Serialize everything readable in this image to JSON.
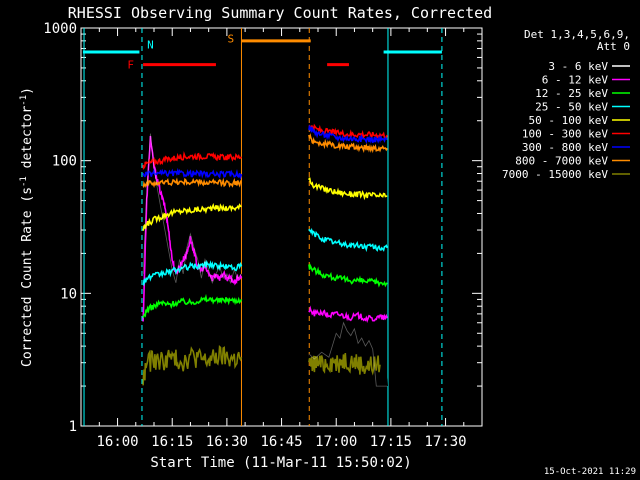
{
  "chart_data": {
    "type": "line",
    "title": "RHESSI Observing Summary Count Rates, Corrected",
    "xlabel": "Start Time (11-Mar-11 15:50:02)",
    "ylabel": "Corrected Count Rate (s⁻¹ detector⁻¹)",
    "ylabel_parts": {
      "main": "Corrected Count Rate (s",
      "sup1": "-1",
      "mid": " detector",
      "sup2": "-1",
      "end": ")"
    },
    "yscale": "log",
    "ylim": [
      1,
      1000
    ],
    "xlim_minutes": [
      -10.03,
      100.0
    ],
    "x_ticks": [
      {
        "label": "16:00",
        "min": 0
      },
      {
        "label": "16:15",
        "min": 15
      },
      {
        "label": "16:30",
        "min": 30
      },
      {
        "label": "16:45",
        "min": 45
      },
      {
        "label": "17:00",
        "min": 60
      },
      {
        "label": "17:15",
        "min": 75
      },
      {
        "label": "17:30",
        "min": 90
      }
    ],
    "y_ticks": [
      {
        "label": "1",
        "value": 1
      },
      {
        "label": "10",
        "value": 10
      },
      {
        "label": "100",
        "value": 100
      },
      {
        "label": "1000",
        "value": 1000
      }
    ],
    "legend": {
      "position": "right",
      "header": [
        "Det 1,3,4,5,6,9,",
        "Att 0"
      ],
      "entries": [
        {
          "label": "3 - 6 keV",
          "color": "#ffffff"
        },
        {
          "label": "6 - 12 keV",
          "color": "#ff00ff"
        },
        {
          "label": "12 - 25 keV",
          "color": "#00ff00"
        },
        {
          "label": "25 - 50 keV",
          "color": "#00ffff"
        },
        {
          "label": "50 - 100 keV",
          "color": "#ffff00"
        },
        {
          "label": "100 - 300 keV",
          "color": "#ff0000"
        },
        {
          "label": "300 - 800 keV",
          "color": "#0000ff"
        },
        {
          "label": "800 - 7000 keV",
          "color": "#ff8c00"
        },
        {
          "label": "7000 - 15000 keV",
          "color": "#808000"
        }
      ]
    },
    "plot_colors": {
      "line_3_6": "#000000"
    },
    "segments": [
      {
        "start": 7.0,
        "end": 34.0
      },
      {
        "start": 52.5,
        "end": 74.0
      }
    ],
    "series": [
      {
        "name": "3 - 6 keV",
        "color": "#000000",
        "points": [
          [
            7,
            14
          ],
          [
            8,
            55
          ],
          [
            9,
            160
          ],
          [
            10,
            90
          ],
          [
            11,
            60
          ],
          [
            13,
            30
          ],
          [
            15,
            15
          ],
          [
            16,
            12
          ],
          [
            17,
            18
          ],
          [
            18,
            14
          ],
          [
            19,
            22
          ],
          [
            20,
            28
          ],
          [
            21,
            22
          ],
          [
            22,
            18
          ],
          [
            23,
            13
          ],
          [
            24,
            18
          ],
          [
            25,
            15
          ],
          [
            26,
            12
          ],
          [
            27,
            14
          ],
          [
            28,
            16
          ],
          [
            29,
            13
          ],
          [
            30,
            14
          ],
          [
            31,
            12
          ],
          [
            32,
            15
          ],
          [
            33,
            13
          ],
          [
            34,
            14
          ]
        ],
        "points2": [
          [
            52.5,
            3.5
          ],
          [
            54,
            3.2
          ],
          [
            56,
            3.6
          ],
          [
            58,
            3.3
          ],
          [
            60,
            5.0
          ],
          [
            61,
            4.6
          ],
          [
            62,
            6.0
          ],
          [
            63,
            5.2
          ],
          [
            64,
            4.8
          ],
          [
            65,
            5.4
          ],
          [
            66,
            4.2
          ],
          [
            67,
            4.6
          ],
          [
            68,
            4.0
          ],
          [
            69,
            4.4
          ],
          [
            70,
            3.8
          ],
          [
            71,
            2.0
          ],
          [
            73,
            2.0
          ],
          [
            74,
            2.0
          ]
        ]
      },
      {
        "name": "6 - 12 keV",
        "color": "#ff00ff",
        "points": [
          [
            7,
            6
          ],
          [
            8,
            50
          ],
          [
            9,
            150
          ],
          [
            10,
            90
          ],
          [
            11,
            70
          ],
          [
            12,
            55
          ],
          [
            13,
            45
          ],
          [
            14,
            30
          ],
          [
            15,
            18
          ],
          [
            16,
            14
          ],
          [
            17,
            16
          ],
          [
            18,
            18
          ],
          [
            19,
            20
          ],
          [
            20,
            26
          ],
          [
            21,
            20
          ],
          [
            22,
            16
          ],
          [
            23,
            15
          ],
          [
            24,
            16
          ],
          [
            25,
            14
          ],
          [
            26,
            13
          ],
          [
            27,
            14
          ],
          [
            28,
            13
          ],
          [
            29,
            14
          ],
          [
            30,
            13
          ],
          [
            31,
            13
          ],
          [
            32,
            12
          ],
          [
            33,
            13
          ],
          [
            34,
            13
          ]
        ],
        "points2": [
          [
            52.5,
            7.5
          ],
          [
            54,
            7.0
          ],
          [
            56,
            7.2
          ],
          [
            58,
            6.8
          ],
          [
            60,
            7.0
          ],
          [
            62,
            6.8
          ],
          [
            64,
            6.6
          ],
          [
            66,
            6.8
          ],
          [
            68,
            6.5
          ],
          [
            70,
            6.4
          ],
          [
            72,
            6.6
          ],
          [
            74,
            6.5
          ]
        ]
      },
      {
        "name": "12 - 25 keV",
        "color": "#00ff00",
        "points": [
          [
            7,
            6.5
          ],
          [
            8,
            7.5
          ],
          [
            10,
            8
          ],
          [
            12,
            8.5
          ],
          [
            14,
            8.2
          ],
          [
            16,
            8.5
          ],
          [
            18,
            8.7
          ],
          [
            20,
            8.5
          ],
          [
            22,
            8.8
          ],
          [
            24,
            9
          ],
          [
            26,
            9
          ],
          [
            28,
            8.8
          ],
          [
            30,
            9
          ],
          [
            32,
            8.8
          ],
          [
            34,
            9
          ]
        ],
        "points2": [
          [
            52.5,
            16
          ],
          [
            54,
            15
          ],
          [
            56,
            14
          ],
          [
            58,
            13.5
          ],
          [
            60,
            13
          ],
          [
            62,
            12.8
          ],
          [
            64,
            12.5
          ],
          [
            66,
            12.5
          ],
          [
            68,
            12.3
          ],
          [
            70,
            12.2
          ],
          [
            72,
            12
          ],
          [
            74,
            12
          ]
        ]
      },
      {
        "name": "25 - 50 keV",
        "color": "#00ffff",
        "points": [
          [
            7,
            12
          ],
          [
            8,
            13
          ],
          [
            10,
            13.5
          ],
          [
            12,
            14
          ],
          [
            14,
            14.5
          ],
          [
            16,
            15
          ],
          [
            18,
            15.5
          ],
          [
            20,
            16
          ],
          [
            22,
            16
          ],
          [
            24,
            16.5
          ],
          [
            26,
            16.5
          ],
          [
            28,
            16
          ],
          [
            30,
            16
          ],
          [
            32,
            15.5
          ],
          [
            34,
            16
          ]
        ],
        "points2": [
          [
            52.5,
            30
          ],
          [
            54,
            28
          ],
          [
            56,
            26
          ],
          [
            58,
            25
          ],
          [
            60,
            24
          ],
          [
            62,
            23.5
          ],
          [
            64,
            23
          ],
          [
            66,
            23
          ],
          [
            68,
            22.5
          ],
          [
            70,
            22.5
          ],
          [
            72,
            22
          ],
          [
            74,
            22
          ]
        ]
      },
      {
        "name": "50 - 100 keV",
        "color": "#ffff00",
        "points": [
          [
            7,
            30
          ],
          [
            8,
            33
          ],
          [
            10,
            36
          ],
          [
            12,
            38
          ],
          [
            14,
            40
          ],
          [
            16,
            41
          ],
          [
            18,
            42
          ],
          [
            20,
            42
          ],
          [
            22,
            43
          ],
          [
            24,
            43
          ],
          [
            26,
            44
          ],
          [
            28,
            44
          ],
          [
            30,
            44
          ],
          [
            32,
            44
          ],
          [
            34,
            45
          ]
        ],
        "points2": [
          [
            52.5,
            72
          ],
          [
            54,
            65
          ],
          [
            56,
            62
          ],
          [
            58,
            60
          ],
          [
            60,
            58
          ],
          [
            62,
            57
          ],
          [
            64,
            56
          ],
          [
            66,
            56
          ],
          [
            68,
            55
          ],
          [
            70,
            55
          ],
          [
            72,
            54
          ],
          [
            74,
            54
          ]
        ]
      },
      {
        "name": "100 - 300 keV",
        "color": "#ff0000",
        "points": [
          [
            7,
            92
          ],
          [
            8,
            95
          ],
          [
            10,
            98
          ],
          [
            12,
            100
          ],
          [
            14,
            103
          ],
          [
            16,
            105
          ],
          [
            18,
            107
          ],
          [
            20,
            108
          ],
          [
            22,
            108
          ],
          [
            24,
            108
          ],
          [
            26,
            107
          ],
          [
            28,
            106
          ],
          [
            30,
            106
          ],
          [
            32,
            106
          ],
          [
            34,
            107
          ]
        ],
        "points2": [
          [
            52.5,
            185
          ],
          [
            54,
            175
          ],
          [
            56,
            168
          ],
          [
            58,
            165
          ],
          [
            60,
            162
          ],
          [
            62,
            160
          ],
          [
            64,
            158
          ],
          [
            66,
            158
          ],
          [
            68,
            157
          ],
          [
            70,
            157
          ],
          [
            72,
            156
          ],
          [
            74,
            156
          ]
        ]
      },
      {
        "name": "300 - 800 keV",
        "color": "#0000ff",
        "points": [
          [
            7,
            78
          ],
          [
            8,
            79
          ],
          [
            10,
            80
          ],
          [
            12,
            80
          ],
          [
            14,
            80
          ],
          [
            16,
            80
          ],
          [
            18,
            80
          ],
          [
            20,
            80
          ],
          [
            22,
            80
          ],
          [
            24,
            79
          ],
          [
            26,
            79
          ],
          [
            28,
            79
          ],
          [
            30,
            79
          ],
          [
            32,
            79
          ],
          [
            34,
            79
          ]
        ],
        "points2": [
          [
            52.5,
            178
          ],
          [
            54,
            165
          ],
          [
            56,
            158
          ],
          [
            58,
            155
          ],
          [
            60,
            150
          ],
          [
            62,
            148
          ],
          [
            64,
            147
          ],
          [
            66,
            146
          ],
          [
            68,
            145
          ],
          [
            70,
            145
          ],
          [
            72,
            144
          ],
          [
            74,
            144
          ]
        ]
      },
      {
        "name": "800 - 7000 keV",
        "color": "#ff8c00",
        "points": [
          [
            7,
            66
          ],
          [
            8,
            67
          ],
          [
            10,
            68
          ],
          [
            12,
            68
          ],
          [
            14,
            69
          ],
          [
            16,
            69
          ],
          [
            18,
            69
          ],
          [
            20,
            69
          ],
          [
            22,
            69
          ],
          [
            24,
            68
          ],
          [
            26,
            68
          ],
          [
            28,
            68
          ],
          [
            30,
            68
          ],
          [
            32,
            68
          ],
          [
            34,
            68
          ]
        ],
        "points2": [
          [
            52.5,
            150
          ],
          [
            54,
            140
          ],
          [
            56,
            135
          ],
          [
            58,
            132
          ],
          [
            60,
            130
          ],
          [
            62,
            128
          ],
          [
            64,
            127
          ],
          [
            66,
            126
          ],
          [
            68,
            126
          ],
          [
            70,
            125
          ],
          [
            72,
            125
          ],
          [
            74,
            124
          ]
        ]
      },
      {
        "name": "7000 - 15000 keV",
        "color": "#808000",
        "points": [
          [
            7,
            2.2
          ],
          [
            8,
            3
          ],
          [
            10,
            3.2
          ],
          [
            12,
            3.1
          ],
          [
            14,
            3.3
          ],
          [
            16,
            3.2
          ],
          [
            18,
            3.1
          ],
          [
            20,
            3.4
          ],
          [
            22,
            3.3
          ],
          [
            24,
            3.1
          ],
          [
            26,
            3.2
          ],
          [
            28,
            3.4
          ],
          [
            30,
            3.3
          ],
          [
            32,
            3.2
          ],
          [
            34,
            3.3
          ]
        ],
        "points2": [
          [
            52.5,
            2.8
          ],
          [
            54,
            3.0
          ],
          [
            56,
            2.9
          ],
          [
            58,
            3.1
          ],
          [
            60,
            3.0
          ],
          [
            62,
            3.2
          ],
          [
            64,
            3.1
          ],
          [
            66,
            3.0
          ],
          [
            68,
            2.8
          ],
          [
            70,
            2.9
          ],
          [
            72,
            2.9
          ]
        ]
      }
    ],
    "annotations": {
      "flags": [
        {
          "label": "N",
          "color": "#00ffff",
          "x_min": 7.0
        },
        {
          "label": "F",
          "color": "#ff0000",
          "x_min": 6.0
        },
        {
          "label": "S",
          "color": "#ff8c00",
          "x_min": 34.0
        }
      ],
      "cyan_lines": [
        {
          "x0": -9.5,
          "x1": 6.0,
          "y_value": 660
        },
        {
          "x0": 73.0,
          "x1": 89.0,
          "y_value": 660
        }
      ],
      "cyan_vlines": [
        -9.2,
        6.7,
        74.2,
        89.0
      ],
      "orange_line": {
        "x0": 34.0,
        "x1": 53.0,
        "y_value": 800
      },
      "orange_vlines": [
        34.0,
        52.6
      ],
      "red_lines": [
        {
          "x0": 7.0,
          "x1": 27.0,
          "y_value": 530
        },
        {
          "x0": 57.5,
          "x1": 63.5,
          "y_value": 530
        }
      ]
    }
  },
  "footer": {
    "timestamp": "15-Oct-2021 11:29"
  }
}
